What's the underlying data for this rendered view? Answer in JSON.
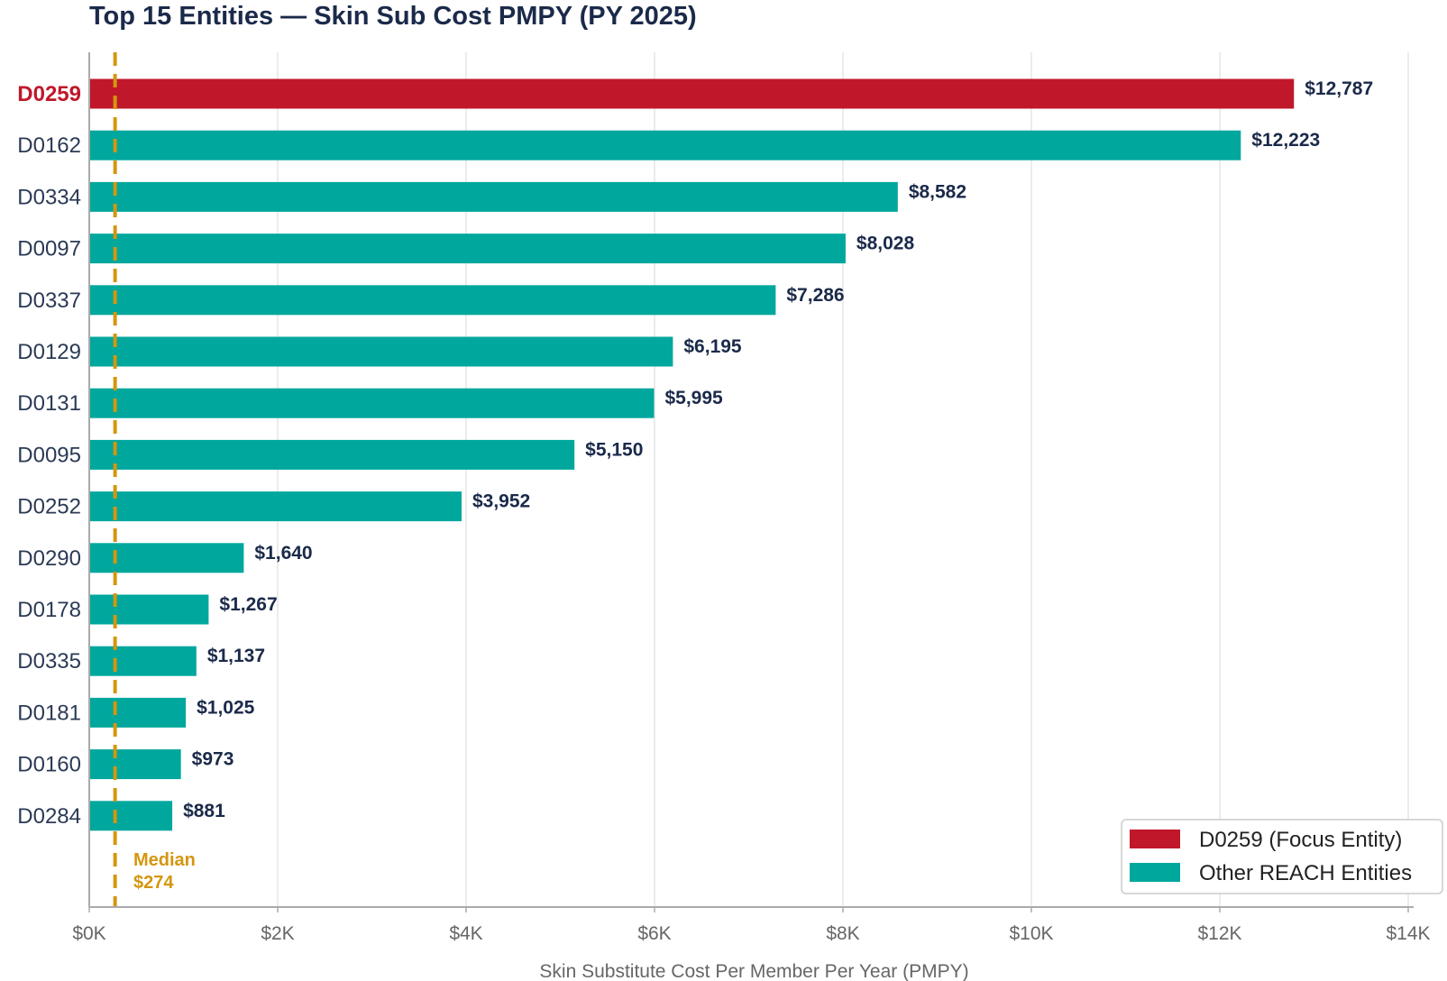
{
  "chart_data": {
    "type": "bar",
    "orientation": "horizontal",
    "title": "Top 15 Entities — Skin Sub Cost PMPY (PY 2025)",
    "xlabel": "Skin Substitute Cost Per Member Per Year (PMPY)",
    "ylabel": "",
    "xlim": [
      0,
      14000
    ],
    "x_ticks": [
      0,
      2000,
      4000,
      6000,
      8000,
      10000,
      12000,
      14000
    ],
    "x_tick_labels": [
      "$0K",
      "$2K",
      "$4K",
      "$6K",
      "$8K",
      "$10K",
      "$12K",
      "$14K"
    ],
    "grid": "vertical",
    "categories": [
      "D0259",
      "D0162",
      "D0334",
      "D0097",
      "D0337",
      "D0129",
      "D0131",
      "D0095",
      "D0252",
      "D0290",
      "D0178",
      "D0335",
      "D0181",
      "D0160",
      "D0284"
    ],
    "values": [
      12787,
      12223,
      8582,
      8028,
      7286,
      6195,
      5995,
      5150,
      3952,
      1640,
      1267,
      1137,
      1025,
      973,
      881
    ],
    "value_labels": [
      "$12,787",
      "$12,223",
      "$8,582",
      "$8,028",
      "$7,286",
      "$6,195",
      "$5,995",
      "$5,150",
      "$3,952",
      "$1,640",
      "$1,267",
      "$1,137",
      "$1,025",
      "$973",
      "$881"
    ],
    "focus_category": "D0259",
    "median": {
      "value": 274,
      "label_line1": "Median",
      "label_line2": "$274",
      "color": "#d4960f"
    },
    "legend": {
      "position": "bottom-right",
      "entries": [
        {
          "label": "D0259 (Focus Entity)",
          "color": "#c0182a"
        },
        {
          "label": "Other REACH Entities",
          "color": "#00a79d"
        }
      ]
    },
    "colors": {
      "focus": "#c0182a",
      "other": "#00a79d"
    }
  }
}
